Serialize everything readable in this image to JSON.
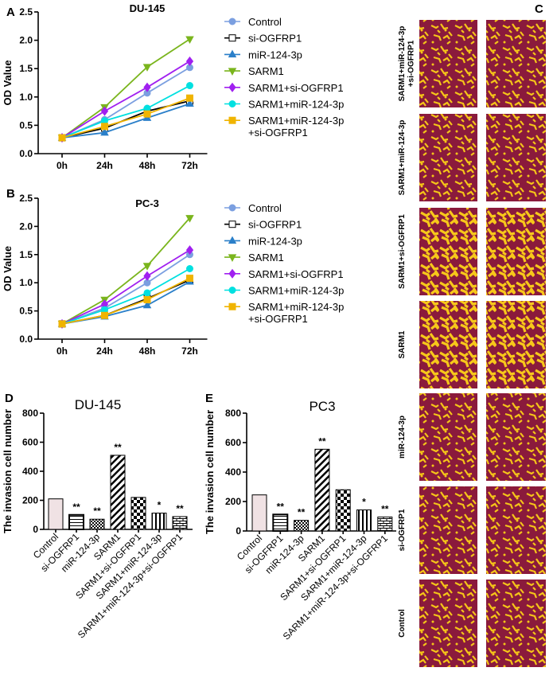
{
  "chart_data": [
    {
      "type": "line",
      "panel": "A",
      "title": "DU-145",
      "y_label": "OD Value",
      "categories": [
        "0h",
        "24h",
        "48h",
        "72h"
      ],
      "ylim": [
        0,
        2.5
      ],
      "yticks": [
        {
          "value": 0,
          "label": "0.0"
        },
        0.5,
        {
          "value": 1,
          "label": "1.0"
        },
        1.5,
        {
          "value": 2,
          "label": "2.0"
        },
        2.5
      ],
      "series": [
        {
          "name": "Control",
          "color": "#7b9fe0",
          "marker": "circle",
          "values": [
            0.28,
            0.6,
            1.07,
            1.52
          ]
        },
        {
          "name": "si-OGFRP1",
          "color": "#ffffff",
          "marker": "square",
          "values": [
            0.28,
            0.45,
            0.75,
            0.93
          ]
        },
        {
          "name": "miR-124-3p",
          "color": "#2a7fc9",
          "marker": "triangle",
          "values": [
            0.28,
            0.37,
            0.63,
            0.88
          ]
        },
        {
          "name": "SARM1",
          "color": "#7ab51d",
          "marker": "down-triangle",
          "values": [
            0.28,
            0.82,
            1.53,
            2.02
          ]
        },
        {
          "name": "SARM1+si-OGFRP1",
          "color": "#a020f0",
          "marker": "diamond",
          "values": [
            0.28,
            0.75,
            1.17,
            1.63
          ]
        },
        {
          "name": "SARM1+miR-124-3p",
          "color": "#00e0e0",
          "marker": "circle",
          "values": [
            0.28,
            0.58,
            0.8,
            1.2
          ]
        },
        {
          "name": "SARM1+miR-124-3p\n+si-OGFRP1",
          "color": "#f0b400",
          "marker": "square",
          "values": [
            0.28,
            0.48,
            0.7,
            0.98
          ]
        }
      ]
    },
    {
      "type": "line",
      "panel": "B",
      "title": "PC-3",
      "y_label": "OD Value",
      "categories": [
        "0h",
        "24h",
        "48h",
        "72h"
      ],
      "ylim": [
        0,
        2.5
      ],
      "yticks": [
        {
          "value": 0,
          "label": "0.0"
        },
        0.5,
        {
          "value": 1,
          "label": "1.0"
        },
        1.5,
        {
          "value": 2,
          "label": "2.0"
        },
        2.5
      ],
      "series": [
        {
          "name": "Control",
          "color": "#7b9fe0",
          "marker": "circle",
          "values": [
            0.27,
            0.55,
            1.0,
            1.5
          ]
        },
        {
          "name": "si-OGFRP1",
          "color": "#ffffff",
          "marker": "square",
          "values": [
            0.27,
            0.42,
            0.72,
            1.05
          ]
        },
        {
          "name": "miR-124-3p",
          "color": "#2a7fc9",
          "marker": "triangle",
          "values": [
            0.27,
            0.4,
            0.6,
            1.02
          ]
        },
        {
          "name": "SARM1",
          "color": "#7ab51d",
          "marker": "down-triangle",
          "values": [
            0.27,
            0.7,
            1.3,
            2.15
          ]
        },
        {
          "name": "SARM1+si-OGFRP1",
          "color": "#a020f0",
          "marker": "diamond",
          "values": [
            0.27,
            0.62,
            1.12,
            1.58
          ]
        },
        {
          "name": "SARM1+miR-124-3p",
          "color": "#00e0e0",
          "marker": "circle",
          "values": [
            0.27,
            0.52,
            0.82,
            1.25
          ]
        },
        {
          "name": "SARM1+miR-124-3p\n+si-OGFRP1",
          "color": "#f0b400",
          "marker": "square",
          "values": [
            0.27,
            0.42,
            0.7,
            1.08
          ]
        }
      ]
    },
    {
      "type": "bar",
      "panel": "D",
      "title": "DU-145",
      "y_label": "The invasion cell number",
      "categories": [
        "Control",
        "si-OGFRP1",
        "miR-124-3p",
        "SARM1",
        "SARM1+si-OGFRP1",
        "SARM1+miR-124-3p",
        "SARM1+miR-124-3p+si-OGFRP1"
      ],
      "values": [
        210,
        100,
        70,
        510,
        220,
        112,
        88
      ],
      "significance": [
        null,
        "**",
        "**",
        "**",
        null,
        "*",
        "**"
      ],
      "ylim": [
        0,
        800
      ],
      "yticks": [
        0,
        200,
        400,
        600,
        800
      ]
    },
    {
      "type": "bar",
      "panel": "E",
      "title": "PC3",
      "y_label": "The invasion cell number",
      "categories": [
        "Control",
        "si-OGFRP1",
        "miR-124-3p",
        "SARM1",
        "SARM1+si-OGFRP1",
        "SARM1+miR-124-3p",
        "SARM1+miR-124-3p+si-OGFRP1"
      ],
      "values": [
        245,
        112,
        72,
        555,
        280,
        143,
        95
      ],
      "significance": [
        null,
        "**",
        "**",
        "**",
        null,
        "*",
        "**"
      ],
      "ylim": [
        0,
        800
      ],
      "yticks": [
        0,
        200,
        400,
        600,
        800
      ]
    }
  ],
  "images": {
    "panel": "C",
    "rows": [
      "SARM1+miR-124-3p\n+si-OGFRP1",
      "SARM1+miR-124-3p",
      "SARM1+si-OGFRP1",
      "SARM1",
      "miR-124-3p",
      "si-OGFRP1",
      "Control"
    ]
  }
}
